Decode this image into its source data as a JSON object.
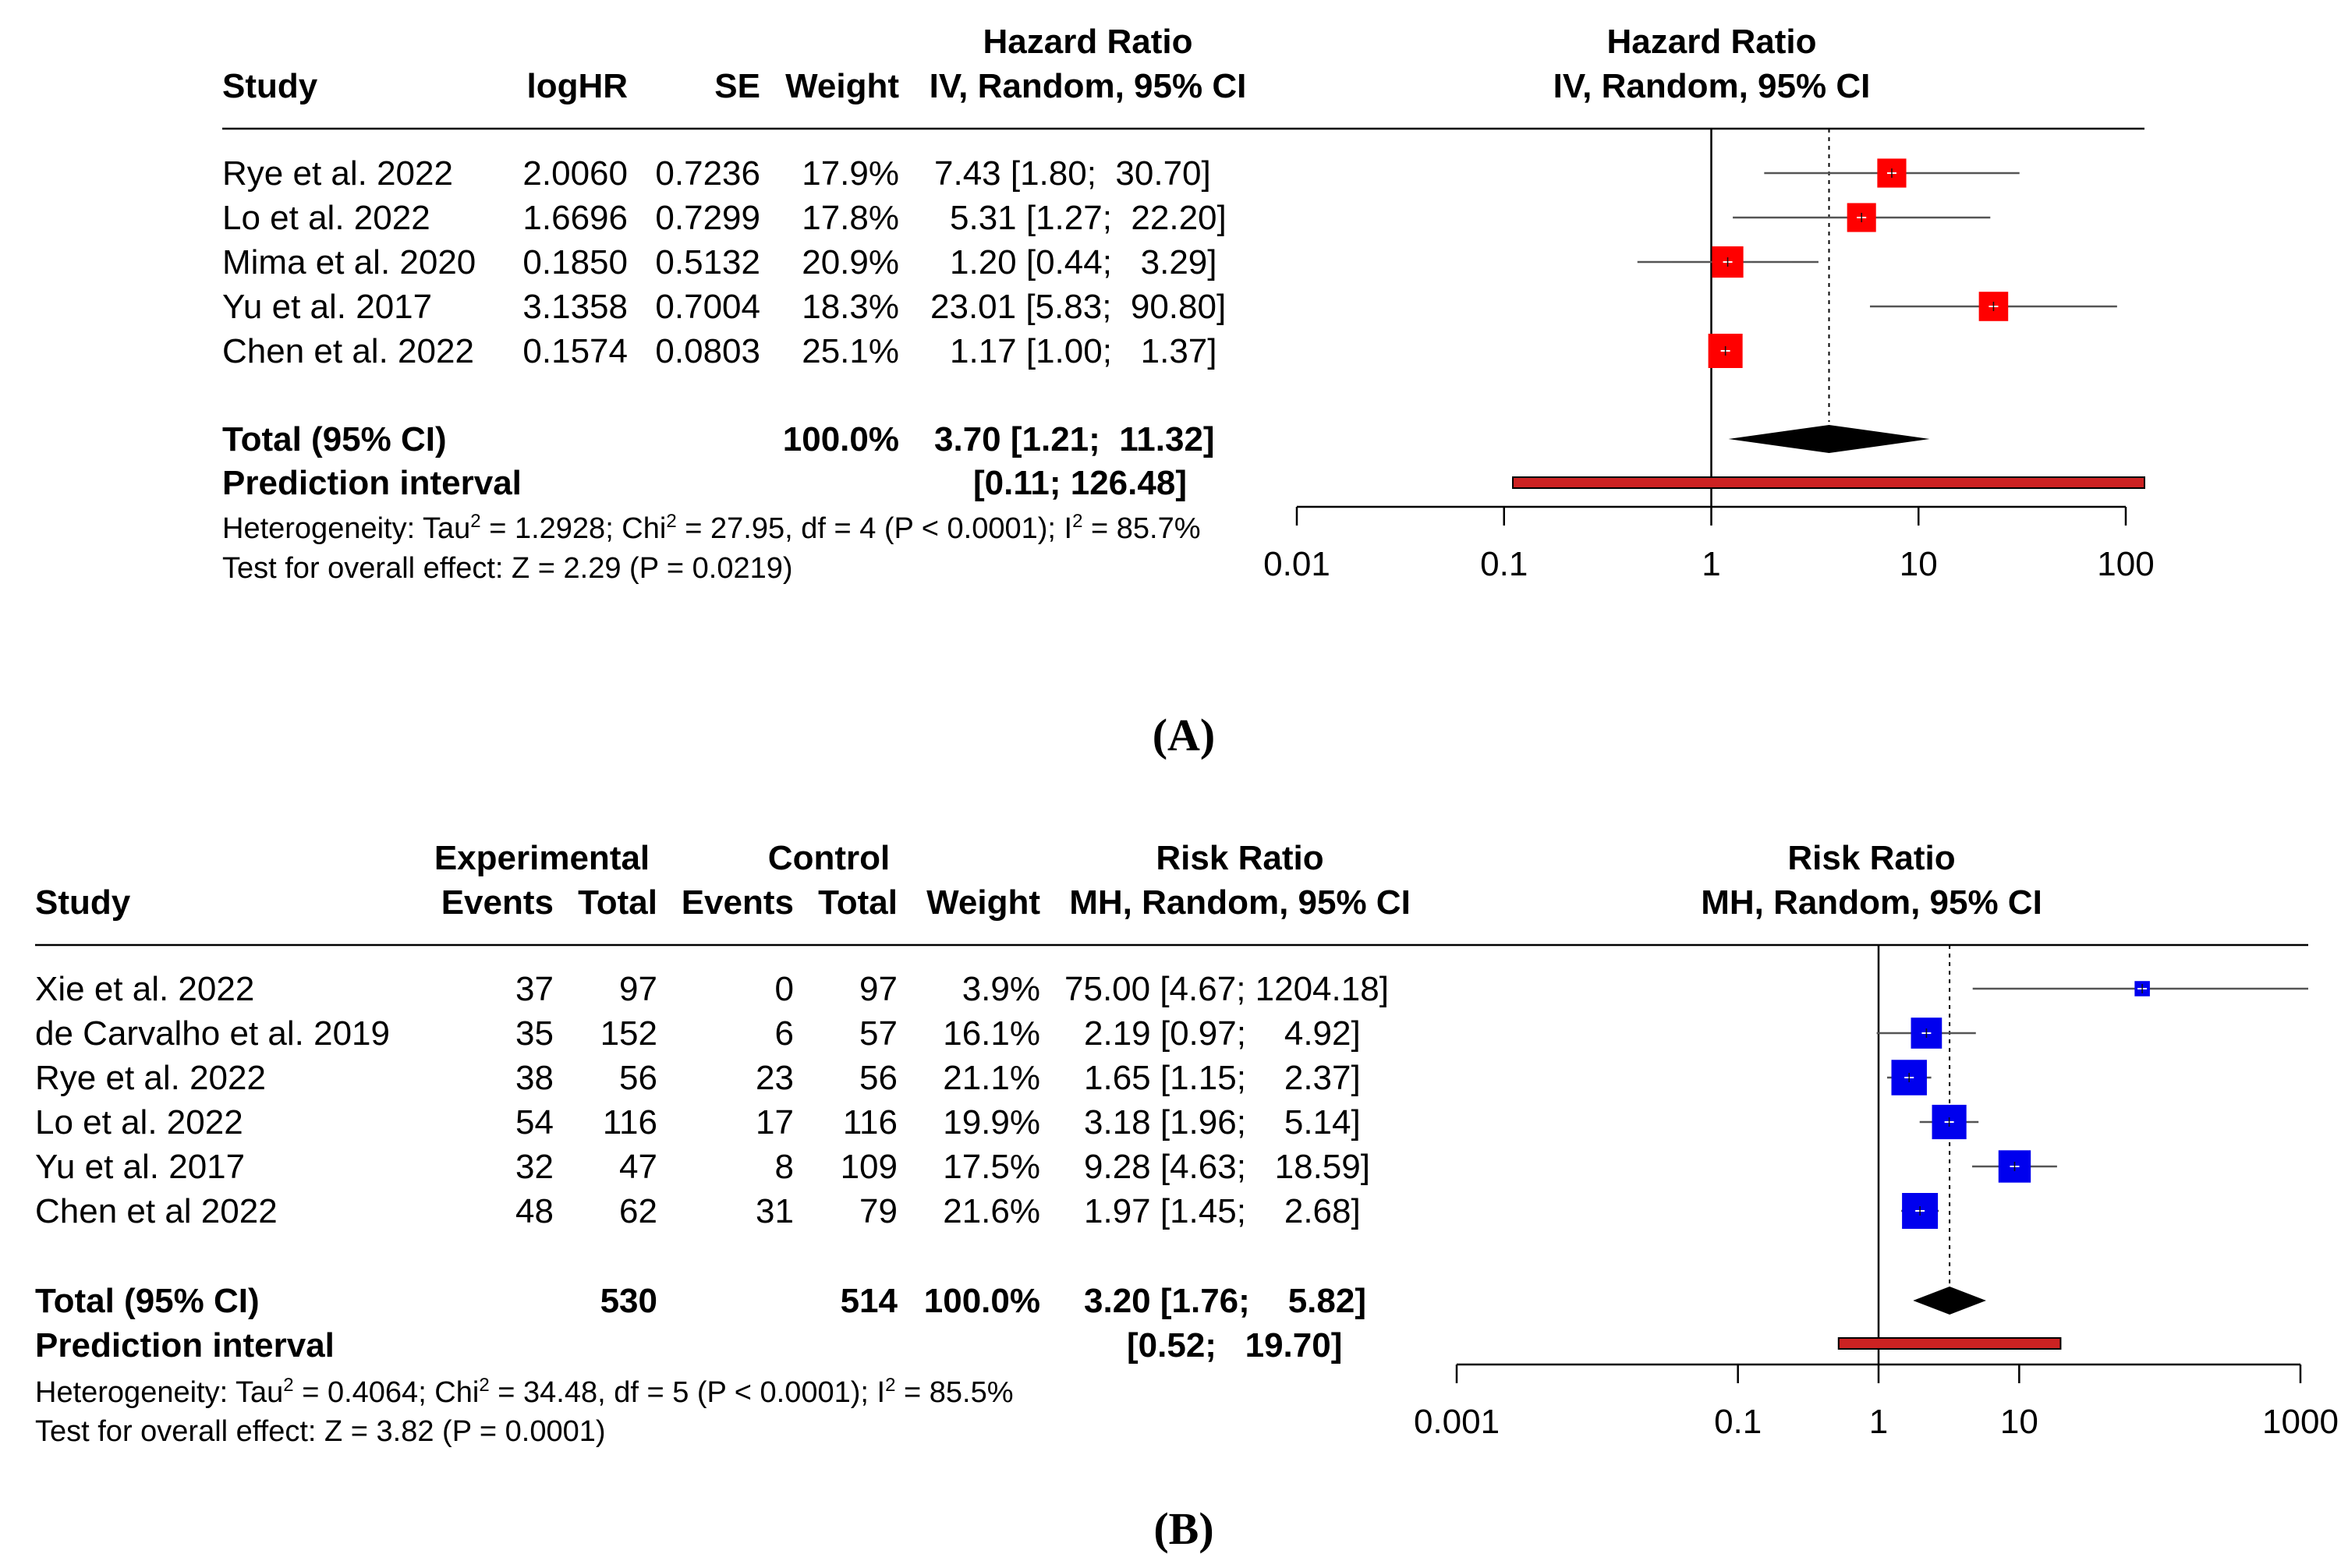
{
  "chart_data": [
    {
      "type": "forest",
      "panel_label": "(A)",
      "columns": {
        "study": "Study",
        "loghr": "logHR",
        "se": "SE",
        "weight": "Weight",
        "effect_title": "Hazard Ratio",
        "effect_sub": "IV, Random, 95% CI"
      },
      "plot_header": {
        "title": "Hazard Ratio",
        "sub": "IV, Random, 95% CI"
      },
      "studies": [
        {
          "name": "Rye et al. 2022",
          "loghr": "2.0060",
          "se": "0.7236",
          "weight": "17.9%",
          "ci_text": "7.43 [1.80;  30.70]",
          "est": 7.43,
          "lo": 1.8,
          "hi": 30.7,
          "w": 17.9
        },
        {
          "name": "Lo et al. 2022",
          "loghr": "1.6696",
          "se": "0.7299",
          "weight": "17.8%",
          "ci_text": "5.31 [1.27;  22.20]",
          "est": 5.31,
          "lo": 1.27,
          "hi": 22.2,
          "w": 17.8
        },
        {
          "name": "Mima et al. 2020",
          "loghr": "0.1850",
          "se": "0.5132",
          "weight": "20.9%",
          "ci_text": "1.20 [0.44;   3.29]",
          "est": 1.2,
          "lo": 0.44,
          "hi": 3.29,
          "w": 20.9
        },
        {
          "name": "Yu et al. 2017",
          "loghr": "3.1358",
          "se": "0.7004",
          "weight": "18.3%",
          "ci_text": "23.01 [5.83;  90.80]",
          "est": 23.01,
          "lo": 5.83,
          "hi": 90.8,
          "w": 18.3
        },
        {
          "name": "Chen et al. 2022",
          "loghr": "0.1574",
          "se": "0.0803",
          "weight": "25.1%",
          "ci_text": "1.17 [1.00;   1.37]",
          "est": 1.17,
          "lo": 1.0,
          "hi": 1.37,
          "w": 25.1
        }
      ],
      "total": {
        "label": "Total (95% CI)",
        "weight": "100.0%",
        "ci_text": "3.70 [1.21;  11.32]",
        "est": 3.7,
        "lo": 1.21,
        "hi": 11.32
      },
      "prediction": {
        "label": "Prediction interval",
        "ci_text": "[0.11; 126.48]",
        "lo": 0.11,
        "hi": 126.48
      },
      "heterogeneity": {
        "prefix": "Heterogeneity: Tau",
        "tau2": "= 1.2928; Chi",
        "chi2": "= 27.95, df = 4 (P < 0.0001); I",
        "i2": "= 85.7%"
      },
      "overall_effect": "Test for overall effect: Z = 2.29 (P = 0.0219)",
      "axis": {
        "scale": "log",
        "min": 0.01,
        "max": 100,
        "ticks": [
          0.01,
          0.1,
          1,
          10,
          100
        ],
        "tick_labels": [
          "0.01",
          "0.1",
          "1",
          "10",
          "100"
        ],
        "null_value": 1
      },
      "colors": {
        "square": "#ff0000",
        "line": "#555555",
        "diamond": "#000000",
        "prediction": "#cc2222"
      }
    },
    {
      "type": "forest",
      "panel_label": "(B)",
      "columns": {
        "experimental": "Experimental",
        "control": "Control",
        "study": "Study",
        "events": "Events",
        "total": "Total",
        "weight": "Weight",
        "effect_title": "Risk Ratio",
        "effect_sub": "MH, Random, 95% CI"
      },
      "plot_header": {
        "title": "Risk Ratio",
        "sub": "MH, Random, 95% CI"
      },
      "studies": [
        {
          "name": "Xie et al. 2022",
          "exp_events": "37",
          "exp_total": "97",
          "ctl_events": "0",
          "ctl_total": "97",
          "weight": "3.9%",
          "ci_text": "75.00 [4.67; 1204.18]",
          "est": 75.0,
          "lo": 4.67,
          "hi": 1204.18,
          "w": 3.9
        },
        {
          "name": "de Carvalho et al. 2019",
          "exp_events": "35",
          "exp_total": "152",
          "ctl_events": "6",
          "ctl_total": "57",
          "weight": "16.1%",
          "ci_text": "2.19 [0.97;    4.92]",
          "est": 2.19,
          "lo": 0.97,
          "hi": 4.92,
          "w": 16.1
        },
        {
          "name": "Rye et al. 2022",
          "exp_events": "38",
          "exp_total": "56",
          "ctl_events": "23",
          "ctl_total": "56",
          "weight": "21.1%",
          "ci_text": "1.65 [1.15;    2.37]",
          "est": 1.65,
          "lo": 1.15,
          "hi": 2.37,
          "w": 21.1
        },
        {
          "name": "Lo et al. 2022",
          "exp_events": "54",
          "exp_total": "116",
          "ctl_events": "17",
          "ctl_total": "116",
          "weight": "19.9%",
          "ci_text": "3.18 [1.96;    5.14]",
          "est": 3.18,
          "lo": 1.96,
          "hi": 5.14,
          "w": 19.9
        },
        {
          "name": "Yu et al. 2017",
          "exp_events": "32",
          "exp_total": "47",
          "ctl_events": "8",
          "ctl_total": "109",
          "weight": "17.5%",
          "ci_text": "9.28 [4.63;   18.59]",
          "est": 9.28,
          "lo": 4.63,
          "hi": 18.59,
          "w": 17.5
        },
        {
          "name": "Chen et al 2022",
          "exp_events": "48",
          "exp_total": "62",
          "ctl_events": "31",
          "ctl_total": "79",
          "weight": "21.6%",
          "ci_text": "1.97 [1.45;    2.68]",
          "est": 1.97,
          "lo": 1.45,
          "hi": 2.68,
          "w": 21.6
        }
      ],
      "total": {
        "label": "Total (95% CI)",
        "exp_total": "530",
        "ctl_total": "514",
        "weight": "100.0%",
        "ci_text": "3.20 [1.76;    5.82]",
        "est": 3.2,
        "lo": 1.76,
        "hi": 5.82
      },
      "prediction": {
        "label": "Prediction interval",
        "ci_text": "[0.52;   19.70]",
        "lo": 0.52,
        "hi": 19.7
      },
      "heterogeneity": {
        "prefix": "Heterogeneity: Tau",
        "tau2": "= 0.4064; Chi",
        "chi2": "= 34.48, df = 5 (P < 0.0001); I",
        "i2": "= 85.5%"
      },
      "overall_effect": "Test for overall effect: Z = 3.82 (P = 0.0001)",
      "axis": {
        "scale": "log",
        "min": 0.001,
        "max": 1000,
        "ticks": [
          0.001,
          0.1,
          1,
          10,
          1000
        ],
        "tick_labels": [
          "0.001",
          "0.1",
          "1",
          "10",
          "1000"
        ],
        "null_value": 1
      },
      "colors": {
        "square": "#0000ee",
        "line": "#555555",
        "diamond": "#000000",
        "prediction": "#cc2222"
      }
    }
  ]
}
